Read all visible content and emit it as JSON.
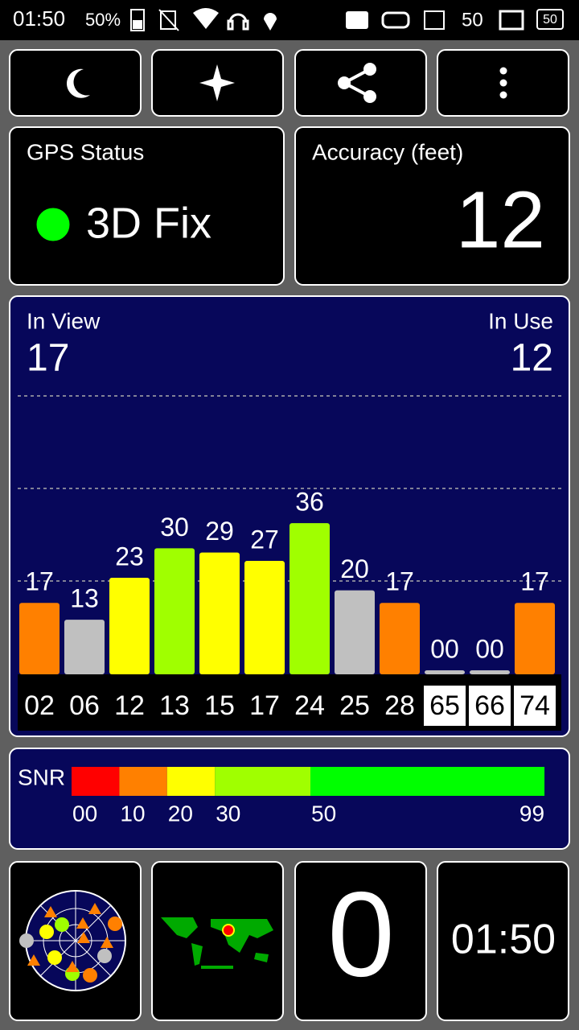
{
  "status_bar": {
    "time": "01:50",
    "battery": "50%",
    "notification_count": "50",
    "badge": "50"
  },
  "gps_status": {
    "label": "GPS Status",
    "value": "3D Fix"
  },
  "accuracy": {
    "label": "Accuracy (feet)",
    "value": "12"
  },
  "satellites": {
    "in_view_label": "In View",
    "in_view": "17",
    "in_use_label": "In Use",
    "in_use": "12",
    "items": [
      {
        "id": "02",
        "snr": 17,
        "snr_label": "17",
        "color": "#ff8000",
        "label_bg": "#000000"
      },
      {
        "id": "06",
        "snr": 13,
        "snr_label": "13",
        "color": "#c0c0c0",
        "label_bg": "#000000"
      },
      {
        "id": "12",
        "snr": 23,
        "snr_label": "23",
        "color": "#ffff00",
        "label_bg": "#000000"
      },
      {
        "id": "13",
        "snr": 30,
        "snr_label": "30",
        "color": "#a0ff00",
        "label_bg": "#000000"
      },
      {
        "id": "15",
        "snr": 29,
        "snr_label": "29",
        "color": "#ffff00",
        "label_bg": "#000000"
      },
      {
        "id": "17",
        "snr": 27,
        "snr_label": "27",
        "color": "#ffff00",
        "label_bg": "#000000"
      },
      {
        "id": "24",
        "snr": 36,
        "snr_label": "36",
        "color": "#a0ff00",
        "label_bg": "#000000"
      },
      {
        "id": "25",
        "snr": 20,
        "snr_label": "20",
        "color": "#c0c0c0",
        "label_bg": "#000000"
      },
      {
        "id": "28",
        "snr": 17,
        "snr_label": "17",
        "color": "#ff8000",
        "label_bg": "#000000"
      },
      {
        "id": "65",
        "snr": 0,
        "snr_label": "00",
        "color": "#c0c0c0",
        "label_bg": "#ffffff"
      },
      {
        "id": "66",
        "snr": 0,
        "snr_label": "00",
        "color": "#c0c0c0",
        "label_bg": "#ffffff"
      },
      {
        "id": "74",
        "snr": 17,
        "snr_label": "17",
        "color": "#ff8000",
        "label_bg": "#ffffff"
      }
    ]
  },
  "snr_legend": {
    "label": "SNR",
    "ticks": [
      {
        "value": 0,
        "label": "00"
      },
      10,
      20,
      30,
      50,
      99
    ],
    "colors": [
      "#ff0000",
      "#ff8000",
      "#ffff00",
      "#a0ff00",
      "#00ff00"
    ]
  },
  "speed": {
    "value": "0"
  },
  "clock": {
    "value": "01:50"
  }
}
